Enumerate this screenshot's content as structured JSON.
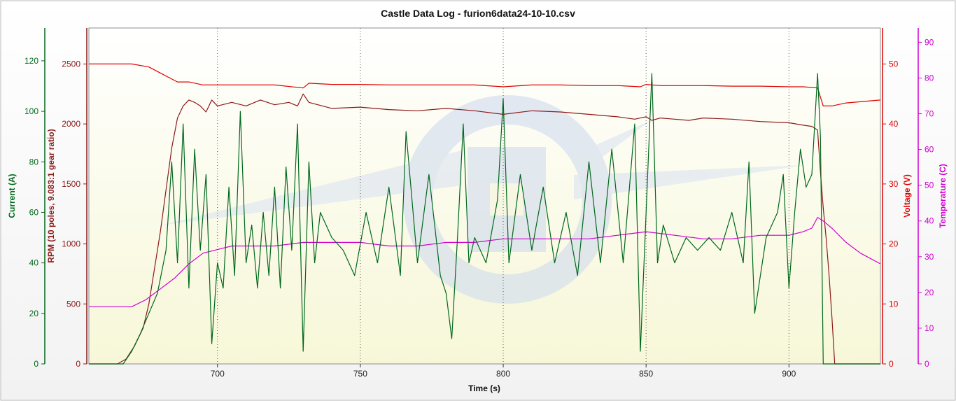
{
  "chart_data": {
    "type": "line",
    "title": "Castle Data Log - furion6data24-10-10.csv",
    "xlabel": "Time (s)",
    "xlim": [
      655,
      932
    ],
    "x_ticks": [
      700,
      750,
      800,
      850,
      900
    ],
    "grid": "vertical dotted lines at x ticks",
    "axes": {
      "current": {
        "label": "Current (A)",
        "range": [
          0,
          133
        ],
        "ticks": [
          0,
          20,
          40,
          60,
          80,
          100,
          120
        ],
        "color": "#00681c"
      },
      "rpm": {
        "label": "RPM (10 poles, 9.083:1 gear ratio)",
        "range": [
          0,
          2800
        ],
        "ticks": [
          0,
          500,
          1000,
          1500,
          2000,
          2500
        ],
        "color": "#8b1a1a"
      },
      "voltage": {
        "label": "Voltage (V)",
        "range": [
          0,
          56
        ],
        "ticks": [
          0,
          10,
          20,
          30,
          40,
          50
        ],
        "color": "#e00000"
      },
      "temperature": {
        "label": "Temperature (C)",
        "range": [
          0,
          94
        ],
        "ticks": [
          0,
          10,
          20,
          30,
          40,
          50,
          60,
          70,
          80,
          90
        ],
        "color": "#d000d0"
      }
    },
    "series": [
      {
        "name": "RPM (10 poles, 9.083:1 gear ratio)",
        "axis": "rpm",
        "x": [
          655,
          665,
          668,
          671,
          674,
          676,
          678,
          680,
          682,
          684,
          686,
          688,
          690,
          692,
          694,
          696,
          698,
          700,
          705,
          710,
          715,
          720,
          725,
          728,
          730,
          732,
          740,
          750,
          760,
          770,
          780,
          790,
          800,
          810,
          820,
          830,
          840,
          846,
          848,
          850,
          852,
          855,
          860,
          865,
          870,
          880,
          890,
          900,
          905,
          908,
          910,
          911,
          912,
          913,
          914,
          915,
          916,
          932
        ],
        "values": [
          0,
          0,
          40,
          150,
          300,
          500,
          800,
          1100,
          1450,
          1800,
          2050,
          2150,
          2200,
          2180,
          2150,
          2100,
          2200,
          2150,
          2180,
          2150,
          2200,
          2160,
          2180,
          2150,
          2250,
          2180,
          2130,
          2140,
          2120,
          2110,
          2130,
          2110,
          2080,
          2110,
          2100,
          2080,
          2060,
          2040,
          2050,
          2060,
          2030,
          2050,
          2040,
          2030,
          2050,
          2040,
          2020,
          2010,
          1990,
          1980,
          1950,
          1600,
          1300,
          1050,
          750,
          400,
          0,
          0
        ]
      },
      {
        "name": "Voltage (V)",
        "axis": "voltage",
        "x": [
          655,
          670,
          676,
          680,
          684,
          686,
          690,
          695,
          700,
          710,
          720,
          730,
          732,
          740,
          750,
          760,
          770,
          780,
          790,
          800,
          810,
          820,
          830,
          840,
          848,
          850,
          852,
          855,
          860,
          870,
          880,
          890,
          900,
          905,
          910,
          912,
          915,
          920,
          932
        ],
        "values": [
          50,
          50,
          49.5,
          48.5,
          47.5,
          47,
          47,
          46.5,
          46.5,
          46.5,
          46.5,
          46,
          46.8,
          46.6,
          46.6,
          46.5,
          46.5,
          46.5,
          46.5,
          46.2,
          46.5,
          46.5,
          46.4,
          46.4,
          46.2,
          46.6,
          46.5,
          46.4,
          46.4,
          46.4,
          46.3,
          46.3,
          46.2,
          46.2,
          46,
          43,
          43,
          43.5,
          44
        ]
      },
      {
        "name": "Temperature (C)",
        "axis": "temperature",
        "x": [
          655,
          670,
          675,
          680,
          685,
          690,
          695,
          700,
          705,
          710,
          720,
          730,
          740,
          750,
          760,
          770,
          780,
          790,
          800,
          810,
          820,
          830,
          840,
          850,
          860,
          870,
          880,
          890,
          900,
          905,
          908,
          910,
          912,
          915,
          920,
          925,
          932
        ],
        "values": [
          16,
          16,
          18,
          21,
          24,
          28,
          31,
          32,
          33,
          33,
          33,
          34,
          34,
          34,
          33,
          33,
          34,
          34,
          35,
          35,
          35,
          35,
          36,
          37,
          36,
          35,
          35,
          36,
          36,
          37,
          38,
          41,
          40,
          38,
          34,
          31,
          28
        ]
      },
      {
        "name": "Current (A)",
        "axis": "current",
        "x": [
          655,
          667,
          670,
          673,
          676,
          679,
          682,
          684,
          686,
          688,
          690,
          692,
          694,
          696,
          698,
          700,
          702,
          704,
          706,
          708,
          710,
          712,
          714,
          716,
          718,
          720,
          722,
          724,
          726,
          728,
          730,
          732,
          734,
          736,
          740,
          744,
          748,
          752,
          756,
          760,
          764,
          766,
          770,
          774,
          778,
          780,
          782,
          784,
          786,
          788,
          790,
          794,
          798,
          800,
          802,
          806,
          810,
          814,
          818,
          822,
          826,
          830,
          834,
          838,
          842,
          846,
          848,
          850,
          852,
          854,
          856,
          860,
          864,
          868,
          872,
          876,
          880,
          884,
          886,
          888,
          892,
          896,
          898,
          900,
          902,
          904,
          906,
          908,
          910,
          911,
          912,
          932
        ],
        "values": [
          0,
          0,
          5,
          12,
          20,
          28,
          45,
          80,
          40,
          95,
          30,
          85,
          45,
          75,
          8,
          40,
          30,
          70,
          35,
          100,
          40,
          55,
          30,
          60,
          35,
          70,
          30,
          78,
          45,
          95,
          5,
          80,
          40,
          60,
          50,
          45,
          35,
          60,
          40,
          70,
          35,
          92,
          40,
          75,
          35,
          28,
          10,
          50,
          95,
          40,
          50,
          40,
          65,
          105,
          40,
          75,
          45,
          70,
          40,
          60,
          35,
          80,
          40,
          85,
          40,
          95,
          5,
          60,
          115,
          40,
          55,
          40,
          50,
          45,
          50,
          45,
          60,
          40,
          80,
          20,
          50,
          60,
          75,
          30,
          60,
          85,
          70,
          75,
          115,
          90,
          0,
          0
        ]
      }
    ]
  }
}
